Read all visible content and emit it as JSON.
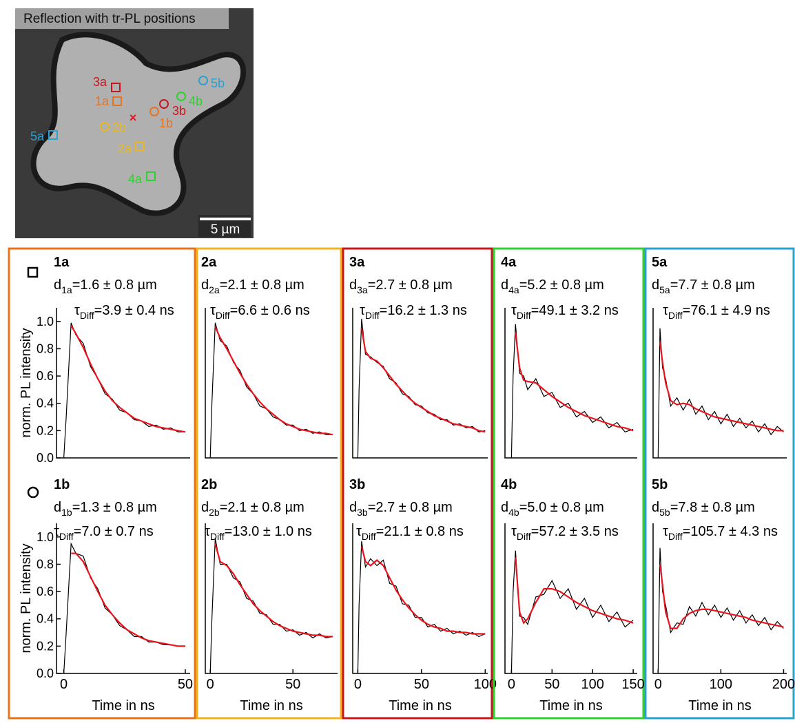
{
  "image": {
    "title": "Reflection with tr-PL positions",
    "scale_bar": "5 µm",
    "center_mark": "×",
    "markers": [
      {
        "label": "3a",
        "color": "#c8161e"
      },
      {
        "label": "1a",
        "color": "#e8731e"
      },
      {
        "label": "2b",
        "color": "#e8b81e"
      },
      {
        "label": "2a",
        "color": "#e8b81e"
      },
      {
        "label": "4a",
        "color": "#2ed12e"
      },
      {
        "label": "5a",
        "color": "#2aa0d0"
      },
      {
        "label": "1b",
        "color": "#e8731e"
      },
      {
        "label": "3b",
        "color": "#c8161e"
      },
      {
        "label": "4b",
        "color": "#2ed12e"
      },
      {
        "label": "5b",
        "color": "#2aa0d0"
      }
    ]
  },
  "chart_data": [
    {
      "type": "line",
      "title": "1a",
      "distance": {
        "symbol": "d",
        "subscript": "1a",
        "text": "=1.6 ± 0.8 µm"
      },
      "tau": {
        "symbol": "τ",
        "subscript": "Diff",
        "text": "=3.9 ± 0.4 ns"
      },
      "frame_color": "#e8731e",
      "ylabel": "norm. PL intensity",
      "x": [
        0,
        1,
        3,
        5,
        8,
        11,
        14,
        17,
        20,
        23,
        26,
        29,
        32,
        35,
        38,
        41,
        44,
        47,
        50
      ],
      "series": [
        {
          "color": "#000000",
          "values": [
            0,
            0.3,
            0.99,
            0.9,
            0.84,
            0.67,
            0.58,
            0.47,
            0.43,
            0.35,
            0.33,
            0.28,
            0.27,
            0.23,
            0.24,
            0.21,
            0.22,
            0.19,
            0.19
          ]
        },
        {
          "color": "#e8141e",
          "values": [
            null,
            null,
            0.97,
            0.91,
            0.81,
            0.69,
            0.58,
            0.49,
            0.42,
            0.37,
            0.33,
            0.29,
            0.27,
            0.25,
            0.23,
            0.22,
            0.21,
            0.2,
            0.19
          ]
        }
      ],
      "xlim": [
        -3,
        52
      ],
      "ylim": [
        0,
        1.1
      ],
      "yticks": [
        {
          "value": 0,
          "label": "0.0"
        },
        {
          "value": 0.2,
          "label": "0.2"
        },
        {
          "value": 0.4,
          "label": "0.4"
        },
        {
          "value": 0.6,
          "label": "0.6"
        },
        {
          "value": 0.8,
          "label": "0.8"
        },
        {
          "value": 1,
          "label": "1.0"
        }
      ]
    },
    {
      "type": "line",
      "title": "2a",
      "distance": {
        "symbol": "d",
        "subscript": "2a",
        "text": "=2.1 ± 0.8 µm"
      },
      "tau": {
        "symbol": "τ",
        "subscript": "Diff",
        "text": "=6.6 ± 0.6 ns"
      },
      "frame_color": "#f2b41e",
      "x": [
        0,
        1,
        3,
        6,
        10,
        14,
        18,
        22,
        26,
        30,
        34,
        38,
        42,
        46,
        50,
        54,
        58,
        62,
        66,
        70,
        74
      ],
      "series": [
        {
          "color": "#000000",
          "values": [
            0,
            0.4,
            0.99,
            0.86,
            0.82,
            0.7,
            0.64,
            0.52,
            0.47,
            0.38,
            0.36,
            0.3,
            0.28,
            0.24,
            0.24,
            0.2,
            0.21,
            0.18,
            0.19,
            0.17,
            0.17
          ]
        },
        {
          "color": "#e8141e",
          "values": [
            null,
            null,
            0.96,
            0.88,
            0.8,
            0.71,
            0.62,
            0.54,
            0.47,
            0.41,
            0.36,
            0.32,
            0.28,
            0.25,
            0.23,
            0.21,
            0.2,
            0.19,
            0.18,
            0.18,
            0.17
          ]
        }
      ],
      "xlim": [
        -3,
        77
      ],
      "ylim": [
        0,
        1.1
      ]
    },
    {
      "type": "line",
      "title": "3a",
      "distance": {
        "symbol": "d",
        "subscript": "3a",
        "text": "=2.7 ± 0.8 µm"
      },
      "tau": {
        "symbol": "τ",
        "subscript": "Diff",
        "text": "=16.2 ± 1.3 ns"
      },
      "frame_color": "#c8161e",
      "x": [
        0,
        1,
        3,
        6,
        10,
        15,
        20,
        25,
        30,
        35,
        40,
        45,
        50,
        55,
        60,
        65,
        70,
        75,
        80,
        85,
        90,
        95,
        100
      ],
      "series": [
        {
          "color": "#000000",
          "values": [
            0,
            0.5,
            1.02,
            0.76,
            0.74,
            0.7,
            0.67,
            0.58,
            0.55,
            0.47,
            0.45,
            0.39,
            0.38,
            0.33,
            0.32,
            0.28,
            0.28,
            0.24,
            0.25,
            0.22,
            0.23,
            0.19,
            0.2
          ]
        },
        {
          "color": "#e8141e",
          "values": [
            null,
            null,
            0.95,
            0.78,
            0.73,
            0.71,
            0.66,
            0.6,
            0.54,
            0.49,
            0.44,
            0.4,
            0.37,
            0.34,
            0.31,
            0.29,
            0.27,
            0.25,
            0.24,
            0.23,
            0.22,
            0.2,
            0.19
          ]
        }
      ],
      "xlim": [
        -4,
        102
      ],
      "ylim": [
        0,
        1.1
      ]
    },
    {
      "type": "line",
      "title": "4a",
      "distance": {
        "symbol": "d",
        "subscript": "4a",
        "text": "=5.2 ± 0.8 µm"
      },
      "tau": {
        "symbol": "τ",
        "subscript": "Diff",
        "text": "=49.1 ± 3.2 ns"
      },
      "frame_color": "#2ed12e",
      "x": [
        0,
        2,
        5,
        10,
        15,
        20,
        30,
        40,
        50,
        60,
        70,
        80,
        90,
        100,
        110,
        120,
        130,
        140,
        150
      ],
      "series": [
        {
          "color": "#000000",
          "values": [
            0,
            0.6,
            0.98,
            0.62,
            0.6,
            0.5,
            0.58,
            0.45,
            0.48,
            0.37,
            0.4,
            0.3,
            0.34,
            0.26,
            0.3,
            0.22,
            0.26,
            0.19,
            0.21
          ]
        },
        {
          "color": "#e8141e",
          "values": [
            null,
            null,
            0.92,
            0.66,
            0.57,
            0.56,
            0.55,
            0.5,
            0.45,
            0.41,
            0.37,
            0.34,
            0.31,
            0.29,
            0.27,
            0.25,
            0.23,
            0.22,
            0.2
          ]
        }
      ],
      "xlim": [
        -8,
        155
      ],
      "ylim": [
        0,
        1.1
      ]
    },
    {
      "type": "line",
      "title": "5a",
      "distance": {
        "symbol": "d",
        "subscript": "5a",
        "text": "=7.7 ± 0.8 µm"
      },
      "tau": {
        "symbol": "τ",
        "subscript": "Diff",
        "text": "=76.1 ± 4.9 ns"
      },
      "frame_color": "#2aa0d0",
      "x": [
        0,
        3,
        7,
        12,
        20,
        30,
        40,
        50,
        60,
        70,
        80,
        90,
        100,
        110,
        120,
        130,
        140,
        150,
        160,
        170,
        180,
        190,
        200
      ],
      "series": [
        {
          "color": "#000000",
          "values": [
            0,
            0.95,
            0.66,
            0.58,
            0.38,
            0.44,
            0.35,
            0.43,
            0.32,
            0.38,
            0.28,
            0.34,
            0.25,
            0.32,
            0.23,
            0.29,
            0.22,
            0.27,
            0.19,
            0.25,
            0.17,
            0.23,
            0.19
          ]
        },
        {
          "color": "#e8141e",
          "values": [
            null,
            0.85,
            0.7,
            0.55,
            0.42,
            0.39,
            0.4,
            0.39,
            0.36,
            0.34,
            0.32,
            0.3,
            0.29,
            0.28,
            0.27,
            0.26,
            0.25,
            0.24,
            0.23,
            0.22,
            0.21,
            0.2,
            0.2
          ]
        }
      ],
      "xlim": [
        -8,
        205
      ],
      "ylim": [
        0,
        1.1
      ]
    },
    {
      "type": "line",
      "title": "1b",
      "distance": {
        "symbol": "d",
        "subscript": "1b",
        "text": "=1.3 ± 0.8 µm"
      },
      "tau": {
        "symbol": "τ",
        "subscript": "Diff",
        "text": "=7.0 ± 0.7 ns"
      },
      "frame_color": "#e8731e",
      "ylabel": "norm. PL intensity",
      "xlabel": "Time in ns",
      "x": [
        0,
        1,
        3,
        5,
        8,
        11,
        14,
        17,
        20,
        23,
        26,
        29,
        32,
        35,
        38,
        41,
        44,
        47,
        50
      ],
      "series": [
        {
          "color": "#000000",
          "values": [
            0,
            0.3,
            0.95,
            0.88,
            0.86,
            0.7,
            0.62,
            0.48,
            0.43,
            0.35,
            0.32,
            0.27,
            0.27,
            0.23,
            0.23,
            0.21,
            0.21,
            0.2,
            0.2
          ]
        },
        {
          "color": "#e8141e",
          "values": [
            null,
            null,
            0.88,
            0.88,
            0.82,
            0.71,
            0.6,
            0.5,
            0.43,
            0.37,
            0.32,
            0.29,
            0.26,
            0.24,
            0.23,
            0.22,
            0.21,
            0.2,
            0.2
          ]
        }
      ],
      "xlim": [
        -3,
        52
      ],
      "ylim": [
        0,
        1.1
      ],
      "xticks": [
        0,
        50
      ],
      "yticks": [
        {
          "value": 0,
          "label": "0.0"
        },
        {
          "value": 0.2,
          "label": "0.2"
        },
        {
          "value": 0.4,
          "label": "0.4"
        },
        {
          "value": 0.6,
          "label": "0.6"
        },
        {
          "value": 0.8,
          "label": "0.8"
        },
        {
          "value": 1,
          "label": "1.0"
        }
      ]
    },
    {
      "type": "line",
      "title": "2b",
      "distance": {
        "symbol": "d",
        "subscript": "2b",
        "text": "=2.1 ± 0.8 µm"
      },
      "tau": {
        "symbol": "τ",
        "subscript": "Diff",
        "text": "=13.0 ± 1.0 ns"
      },
      "frame_color": "#f2b41e",
      "xlabel": "Time in ns",
      "x": [
        0,
        1,
        3,
        6,
        10,
        14,
        18,
        22,
        26,
        30,
        34,
        38,
        42,
        46,
        50,
        54,
        58,
        62,
        66,
        70,
        74
      ],
      "series": [
        {
          "color": "#000000",
          "values": [
            0,
            0.4,
            0.99,
            0.8,
            0.8,
            0.7,
            0.67,
            0.55,
            0.53,
            0.44,
            0.43,
            0.36,
            0.36,
            0.31,
            0.32,
            0.28,
            0.3,
            0.26,
            0.29,
            0.26,
            0.27
          ]
        },
        {
          "color": "#e8141e",
          "values": [
            null,
            null,
            0.95,
            0.82,
            0.79,
            0.73,
            0.65,
            0.58,
            0.51,
            0.46,
            0.42,
            0.38,
            0.35,
            0.33,
            0.31,
            0.3,
            0.29,
            0.28,
            0.28,
            0.27,
            0.27
          ]
        }
      ],
      "xlim": [
        -3,
        77
      ],
      "ylim": [
        0,
        1.1
      ],
      "xticks": [
        0,
        50
      ]
    },
    {
      "type": "line",
      "title": "3b",
      "distance": {
        "symbol": "d",
        "subscript": "3b",
        "text": "=2.7 ± 0.8 µm"
      },
      "tau": {
        "symbol": "τ",
        "subscript": "Diff",
        "text": "=21.1 ± 0.8 ns"
      },
      "frame_color": "#c8161e",
      "xlabel": "Time in ns",
      "x": [
        0,
        1,
        3,
        6,
        10,
        15,
        20,
        25,
        30,
        35,
        40,
        45,
        50,
        55,
        60,
        65,
        70,
        75,
        80,
        85,
        90,
        95,
        100
      ],
      "series": [
        {
          "color": "#000000",
          "values": [
            0,
            0.5,
            0.97,
            0.78,
            0.84,
            0.79,
            0.83,
            0.66,
            0.64,
            0.51,
            0.5,
            0.41,
            0.41,
            0.34,
            0.36,
            0.31,
            0.33,
            0.29,
            0.31,
            0.28,
            0.3,
            0.27,
            0.29
          ]
        },
        {
          "color": "#e8141e",
          "values": [
            null,
            null,
            0.93,
            0.82,
            0.79,
            0.83,
            0.79,
            0.7,
            0.61,
            0.54,
            0.48,
            0.43,
            0.39,
            0.36,
            0.34,
            0.33,
            0.31,
            0.31,
            0.3,
            0.3,
            0.29,
            0.29,
            0.29
          ]
        }
      ],
      "xlim": [
        -4,
        102
      ],
      "ylim": [
        0,
        1.1
      ],
      "xticks": [
        0,
        50,
        100
      ]
    },
    {
      "type": "line",
      "title": "4b",
      "distance": {
        "symbol": "d",
        "subscript": "4b",
        "text": "=5.0 ± 0.8 µm"
      },
      "tau": {
        "symbol": "τ",
        "subscript": "Diff",
        "text": "=57.2 ± 3.5 ns"
      },
      "frame_color": "#2ed12e",
      "xlabel": "Time in ns",
      "x": [
        0,
        2,
        5,
        10,
        15,
        20,
        30,
        40,
        50,
        60,
        70,
        80,
        90,
        100,
        110,
        120,
        130,
        140,
        150
      ],
      "series": [
        {
          "color": "#000000",
          "values": [
            0,
            0.6,
            0.9,
            0.42,
            0.41,
            0.36,
            0.56,
            0.58,
            0.68,
            0.55,
            0.62,
            0.47,
            0.55,
            0.41,
            0.5,
            0.38,
            0.45,
            0.34,
            0.39
          ]
        },
        {
          "color": "#e8141e",
          "values": [
            null,
            null,
            0.85,
            0.45,
            0.37,
            0.4,
            0.52,
            0.62,
            0.62,
            0.6,
            0.56,
            0.52,
            0.49,
            0.46,
            0.44,
            0.42,
            0.4,
            0.39,
            0.37
          ]
        }
      ],
      "xlim": [
        -8,
        155
      ],
      "ylim": [
        0,
        1.1
      ],
      "xticks": [
        0,
        50,
        100,
        150
      ]
    },
    {
      "type": "line",
      "title": "5b",
      "distance": {
        "symbol": "d",
        "subscript": "5b",
        "text": "=7.8 ± 0.8 µm"
      },
      "tau": {
        "symbol": "τ",
        "subscript": "Diff",
        "text": "=105.7 ± 4.3 ns"
      },
      "frame_color": "#2aa0d0",
      "xlabel": "Time in ns",
      "x": [
        0,
        3,
        7,
        12,
        20,
        30,
        40,
        50,
        60,
        70,
        80,
        90,
        100,
        110,
        120,
        130,
        140,
        150,
        160,
        170,
        180,
        190,
        200
      ],
      "series": [
        {
          "color": "#000000",
          "values": [
            0,
            0.92,
            0.6,
            0.5,
            0.3,
            0.37,
            0.36,
            0.49,
            0.42,
            0.52,
            0.43,
            0.5,
            0.41,
            0.48,
            0.39,
            0.46,
            0.37,
            0.43,
            0.35,
            0.41,
            0.32,
            0.38,
            0.33
          ]
        },
        {
          "color": "#e8141e",
          "values": [
            null,
            0.8,
            0.65,
            0.45,
            0.33,
            0.33,
            0.4,
            0.44,
            0.46,
            0.47,
            0.47,
            0.46,
            0.45,
            0.44,
            0.43,
            0.42,
            0.41,
            0.39,
            0.38,
            0.37,
            0.36,
            0.35,
            0.34
          ]
        }
      ],
      "xlim": [
        -8,
        205
      ],
      "ylim": [
        0,
        1.1
      ],
      "xticks": [
        0,
        100,
        200
      ]
    }
  ]
}
